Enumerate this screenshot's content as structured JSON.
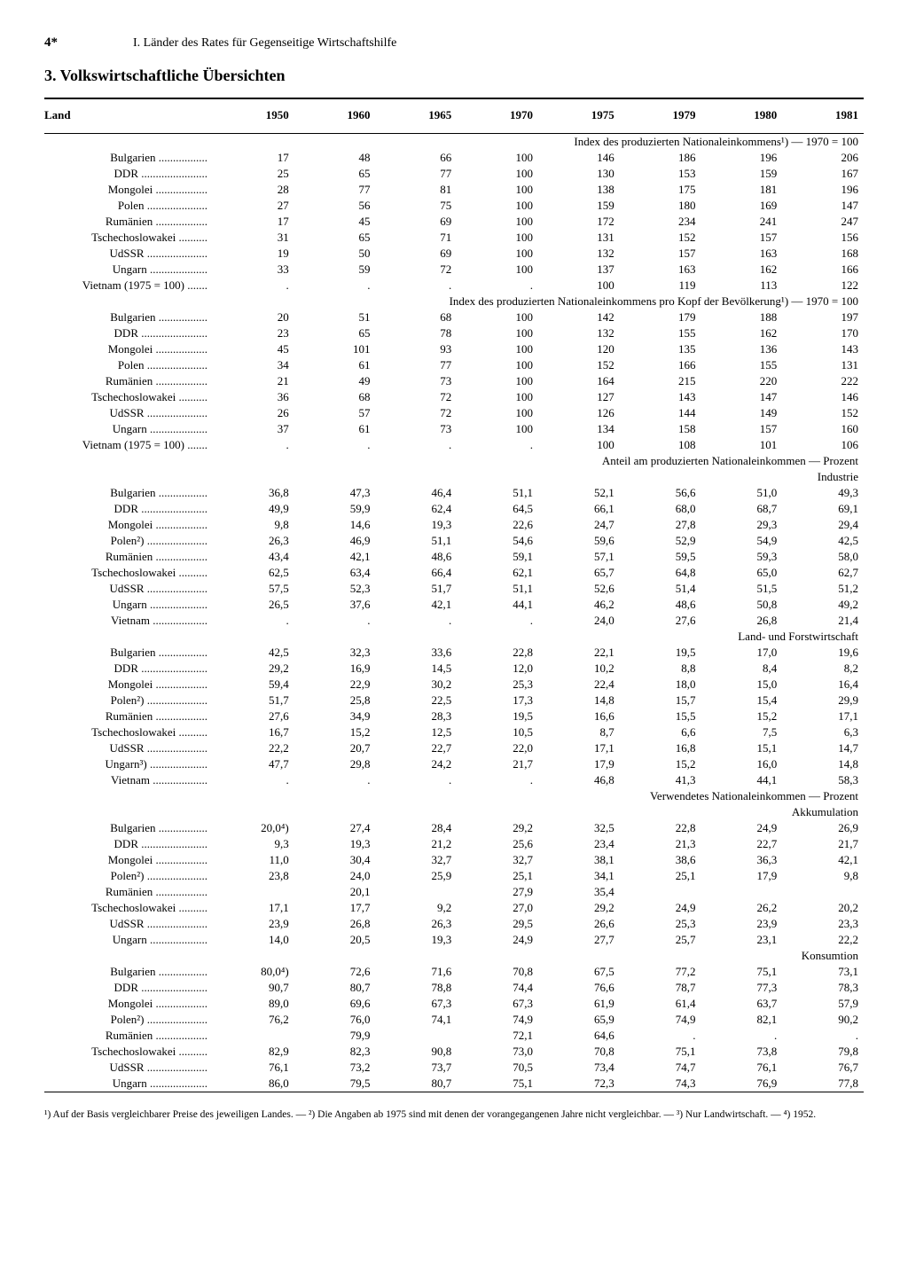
{
  "pageNumber": "4*",
  "chapter": "I. Länder des Rates für Gegenseitige Wirtschaftshilfe",
  "sectionTitle": "3. Volkswirtschaftliche Übersichten",
  "columns": [
    "Land",
    "1950",
    "1960",
    "1965",
    "1970",
    "1975",
    "1979",
    "1980",
    "1981"
  ],
  "dotted": true,
  "sections": [
    {
      "heading": "Index des produzierten Nationaleinkommens¹) — 1970 = 100",
      "rows": [
        {
          "land": "Bulgarien",
          "v": [
            "17",
            "48",
            "66",
            "100",
            "146",
            "186",
            "196",
            "206"
          ]
        },
        {
          "land": "DDR",
          "v": [
            "25",
            "65",
            "77",
            "100",
            "130",
            "153",
            "159",
            "167"
          ]
        },
        {
          "land": "Mongolei",
          "v": [
            "28",
            "77",
            "81",
            "100",
            "138",
            "175",
            "181",
            "196"
          ]
        },
        {
          "land": "Polen",
          "v": [
            "27",
            "56",
            "75",
            "100",
            "159",
            "180",
            "169",
            "147"
          ]
        },
        {
          "land": "Rumänien",
          "v": [
            "17",
            "45",
            "69",
            "100",
            "172",
            "234",
            "241",
            "247"
          ]
        },
        {
          "land": "Tschechoslowakei",
          "v": [
            "31",
            "65",
            "71",
            "100",
            "131",
            "152",
            "157",
            "156"
          ]
        },
        {
          "land": "UdSSR",
          "v": [
            "19",
            "50",
            "69",
            "100",
            "132",
            "157",
            "163",
            "168"
          ]
        },
        {
          "land": "Ungarn",
          "v": [
            "33",
            "59",
            "72",
            "100",
            "137",
            "163",
            "162",
            "166"
          ]
        },
        {
          "land": "Vietnam (1975 = 100)",
          "v": [
            ".",
            ".",
            ".",
            ".",
            "100",
            "119",
            "113",
            "122"
          ]
        }
      ]
    },
    {
      "heading": "Index des produzierten Nationaleinkommens pro Kopf der Bevölkerung¹) — 1970 = 100",
      "rows": [
        {
          "land": "Bulgarien",
          "v": [
            "20",
            "51",
            "68",
            "100",
            "142",
            "179",
            "188",
            "197"
          ]
        },
        {
          "land": "DDR",
          "v": [
            "23",
            "65",
            "78",
            "100",
            "132",
            "155",
            "162",
            "170"
          ]
        },
        {
          "land": "Mongolei",
          "v": [
            "45",
            "101",
            "93",
            "100",
            "120",
            "135",
            "136",
            "143"
          ]
        },
        {
          "land": "Polen",
          "v": [
            "34",
            "61",
            "77",
            "100",
            "152",
            "166",
            "155",
            "131"
          ]
        },
        {
          "land": "Rumänien",
          "v": [
            "21",
            "49",
            "73",
            "100",
            "164",
            "215",
            "220",
            "222"
          ]
        },
        {
          "land": "Tschechoslowakei",
          "v": [
            "36",
            "68",
            "72",
            "100",
            "127",
            "143",
            "147",
            "146"
          ]
        },
        {
          "land": "UdSSR",
          "v": [
            "26",
            "57",
            "72",
            "100",
            "126",
            "144",
            "149",
            "152"
          ]
        },
        {
          "land": "Ungarn",
          "v": [
            "37",
            "61",
            "73",
            "100",
            "134",
            "158",
            "157",
            "160"
          ]
        },
        {
          "land": "Vietnam (1975 = 100)",
          "v": [
            ".",
            ".",
            ".",
            ".",
            "100",
            "108",
            "101",
            "106"
          ]
        }
      ]
    },
    {
      "heading": "Anteil am produzierten Nationaleinkommen — Prozent",
      "subsections": [
        {
          "subheading": "Industrie",
          "rows": [
            {
              "land": "Bulgarien",
              "v": [
                "36,8",
                "47,3",
                "46,4",
                "51,1",
                "52,1",
                "56,6",
                "51,0",
                "49,3"
              ]
            },
            {
              "land": "DDR",
              "v": [
                "49,9",
                "59,9",
                "62,4",
                "64,5",
                "66,1",
                "68,0",
                "68,7",
                "69,1"
              ]
            },
            {
              "land": "Mongolei",
              "v": [
                "9,8",
                "14,6",
                "19,3",
                "22,6",
                "24,7",
                "27,8",
                "29,3",
                "29,4"
              ]
            },
            {
              "land": "Polen²)",
              "v": [
                "26,3",
                "46,9",
                "51,1",
                "54,6",
                "59,6",
                "52,9",
                "54,9",
                "42,5"
              ]
            },
            {
              "land": "Rumänien",
              "v": [
                "43,4",
                "42,1",
                "48,6",
                "59,1",
                "57,1",
                "59,5",
                "59,3",
                "58,0"
              ]
            },
            {
              "land": "Tschechoslowakei",
              "v": [
                "62,5",
                "63,4",
                "66,4",
                "62,1",
                "65,7",
                "64,8",
                "65,0",
                "62,7"
              ]
            },
            {
              "land": "UdSSR",
              "v": [
                "57,5",
                "52,3",
                "51,7",
                "51,1",
                "52,6",
                "51,4",
                "51,5",
                "51,2"
              ]
            },
            {
              "land": "Ungarn",
              "v": [
                "26,5",
                "37,6",
                "42,1",
                "44,1",
                "46,2",
                "48,6",
                "50,8",
                "49,2"
              ]
            },
            {
              "land": "Vietnam",
              "v": [
                ".",
                ".",
                ".",
                ".",
                "24,0",
                "27,6",
                "26,8",
                "21,4"
              ]
            }
          ]
        },
        {
          "subheading": "Land- und Forstwirtschaft",
          "rows": [
            {
              "land": "Bulgarien",
              "v": [
                "42,5",
                "32,3",
                "33,6",
                "22,8",
                "22,1",
                "19,5",
                "17,0",
                "19,6"
              ]
            },
            {
              "land": "DDR",
              "v": [
                "29,2",
                "16,9",
                "14,5",
                "12,0",
                "10,2",
                "8,8",
                "8,4",
                "8,2"
              ]
            },
            {
              "land": "Mongolei",
              "v": [
                "59,4",
                "22,9",
                "30,2",
                "25,3",
                "22,4",
                "18,0",
                "15,0",
                "16,4"
              ]
            },
            {
              "land": "Polen²)",
              "v": [
                "51,7",
                "25,8",
                "22,5",
                "17,3",
                "14,8",
                "15,7",
                "15,4",
                "29,9"
              ]
            },
            {
              "land": "Rumänien",
              "v": [
                "27,6",
                "34,9",
                "28,3",
                "19,5",
                "16,6",
                "15,5",
                "15,2",
                "17,1"
              ]
            },
            {
              "land": "Tschechoslowakei",
              "v": [
                "16,7",
                "15,2",
                "12,5",
                "10,5",
                "8,7",
                "6,6",
                "7,5",
                "6,3"
              ]
            },
            {
              "land": "UdSSR",
              "v": [
                "22,2",
                "20,7",
                "22,7",
                "22,0",
                "17,1",
                "16,8",
                "15,1",
                "14,7"
              ]
            },
            {
              "land": "Ungarn³)",
              "v": [
                "47,7",
                "29,8",
                "24,2",
                "21,7",
                "17,9",
                "15,2",
                "16,0",
                "14,8"
              ]
            },
            {
              "land": "Vietnam",
              "v": [
                ".",
                ".",
                ".",
                ".",
                "46,8",
                "41,3",
                "44,1",
                "58,3"
              ]
            }
          ]
        }
      ]
    },
    {
      "heading": "Verwendetes Nationaleinkommen — Prozent",
      "subsections": [
        {
          "subheading": "Akkumulation",
          "rows": [
            {
              "land": "Bulgarien",
              "v": [
                "20,0⁴)",
                "27,4",
                "28,4",
                "29,2",
                "32,5",
                "22,8",
                "24,9",
                "26,9"
              ]
            },
            {
              "land": "DDR",
              "v": [
                "9,3",
                "19,3",
                "21,2",
                "25,6",
                "23,4",
                "21,3",
                "22,7",
                "21,7"
              ]
            },
            {
              "land": "Mongolei",
              "v": [
                "11,0",
                "30,4",
                "32,7",
                "32,7",
                "38,1",
                "38,6",
                "36,3",
                "42,1"
              ]
            },
            {
              "land": "Polen²)",
              "v": [
                "23,8",
                "24,0",
                "25,9",
                "25,1",
                "34,1",
                "25,1",
                "17,9",
                "9,8"
              ]
            },
            {
              "land": "Rumänien",
              "v": [
                "",
                "20,1",
                "",
                "27,9",
                "35,4",
                "",
                "",
                ""
              ]
            },
            {
              "land": "Tschechoslowakei",
              "v": [
                "17,1",
                "17,7",
                "9,2",
                "27,0",
                "29,2",
                "24,9",
                "26,2",
                "20,2"
              ]
            },
            {
              "land": "UdSSR",
              "v": [
                "23,9",
                "26,8",
                "26,3",
                "29,5",
                "26,6",
                "25,3",
                "23,9",
                "23,3"
              ]
            },
            {
              "land": "Ungarn",
              "v": [
                "14,0",
                "20,5",
                "19,3",
                "24,9",
                "27,7",
                "25,7",
                "23,1",
                "22,2"
              ]
            }
          ]
        },
        {
          "subheading": "Konsumtion",
          "rows": [
            {
              "land": "Bulgarien",
              "v": [
                "80,0⁴)",
                "72,6",
                "71,6",
                "70,8",
                "67,5",
                "77,2",
                "75,1",
                "73,1"
              ]
            },
            {
              "land": "DDR",
              "v": [
                "90,7",
                "80,7",
                "78,8",
                "74,4",
                "76,6",
                "78,7",
                "77,3",
                "78,3"
              ]
            },
            {
              "land": "Mongolei",
              "v": [
                "89,0",
                "69,6",
                "67,3",
                "67,3",
                "61,9",
                "61,4",
                "63,7",
                "57,9"
              ]
            },
            {
              "land": "Polen²)",
              "v": [
                "76,2",
                "76,0",
                "74,1",
                "74,9",
                "65,9",
                "74,9",
                "82,1",
                "90,2"
              ]
            },
            {
              "land": "Rumänien",
              "v": [
                "",
                "79,9",
                "",
                "72,1",
                "64,6",
                ".",
                ".",
                "."
              ]
            },
            {
              "land": "Tschechoslowakei",
              "v": [
                "82,9",
                "82,3",
                "90,8",
                "73,0",
                "70,8",
                "75,1",
                "73,8",
                "79,8"
              ]
            },
            {
              "land": "UdSSR",
              "v": [
                "76,1",
                "73,2",
                "73,7",
                "70,5",
                "73,4",
                "74,7",
                "76,1",
                "76,7"
              ]
            },
            {
              "land": "Ungarn",
              "v": [
                "86,0",
                "79,5",
                "80,7",
                "75,1",
                "72,3",
                "74,3",
                "76,9",
                "77,8"
              ]
            }
          ]
        }
      ]
    }
  ],
  "footnotes": "¹) Auf der Basis vergleichbarer Preise des jeweiligen Landes. — ²) Die Angaben ab 1975 sind mit denen der vorangegangenen Jahre nicht vergleichbar. — ³) Nur Landwirtschaft. — ⁴) 1952."
}
